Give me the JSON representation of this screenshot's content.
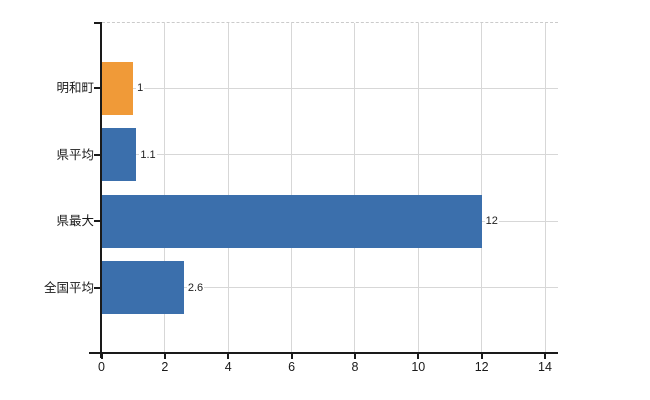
{
  "chart_data": {
    "type": "bar",
    "orientation": "horizontal",
    "title": "",
    "xlabel": "",
    "ylabel": "",
    "categories": [
      "明和町",
      "県平均",
      "県最大",
      "全国平均"
    ],
    "values": [
      1,
      1.1,
      12,
      2.6
    ],
    "value_labels": [
      "1",
      "1.1",
      "12",
      "2.6"
    ],
    "bar_colors": [
      "#F09A38",
      "#3B6FAC",
      "#3B6FAC",
      "#3B6FAC"
    ],
    "xlim": [
      0,
      14.4
    ],
    "xticks": [
      0,
      2,
      4,
      6,
      8,
      10,
      12,
      14
    ],
    "grid": true,
    "legend": "none",
    "colors": {
      "background": "#ffffff",
      "axis": "#1a1a1a",
      "grid": "#d7d7d7",
      "top_border": "#cbcbcb",
      "tick_text": "#1a1a1a",
      "value_text": "#222222"
    }
  }
}
